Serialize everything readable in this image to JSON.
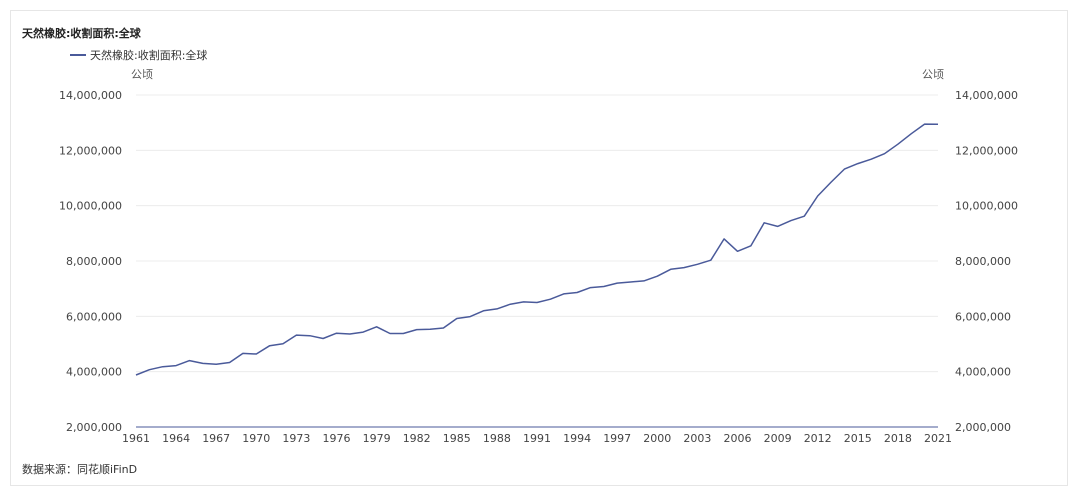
{
  "chart_title": "天然橡胶:收割面积:全球",
  "legend_label": "天然橡胶:收割面积:全球",
  "unit_left": "公顷",
  "unit_right": "公顷",
  "source": "数据来源：同花顺iFinD",
  "colors": {
    "line": "#4a5a9a",
    "grid": "#ececec",
    "axis": "#4a5a9a"
  },
  "chart_data": {
    "type": "line",
    "title": "天然橡胶:收割面积:全球",
    "xlabel": "",
    "ylabel": "公顷",
    "ylim": [
      2000000,
      14000000
    ],
    "yticks": [
      "2,000,000",
      "4,000,000",
      "6,000,000",
      "8,000,000",
      "10,000,000",
      "12,000,000",
      "14,000,000"
    ],
    "xticks": [
      "1961",
      "1964",
      "1967",
      "1970",
      "1973",
      "1976",
      "1979",
      "1982",
      "1985",
      "1988",
      "1991",
      "1994",
      "1997",
      "2000",
      "2003",
      "2006",
      "2009",
      "2012",
      "2015",
      "2018",
      "2021"
    ],
    "grid": true,
    "legend": "top-left",
    "x": [
      1961,
      1962,
      1963,
      1964,
      1965,
      1966,
      1967,
      1968,
      1969,
      1970,
      1971,
      1972,
      1973,
      1974,
      1975,
      1976,
      1977,
      1978,
      1979,
      1980,
      1981,
      1982,
      1983,
      1984,
      1985,
      1986,
      1987,
      1988,
      1989,
      1990,
      1991,
      1992,
      1993,
      1994,
      1995,
      1996,
      1997,
      1998,
      1999,
      2000,
      2001,
      2002,
      2003,
      2004,
      2005,
      2006,
      2007,
      2008,
      2009,
      2010,
      2011,
      2012,
      2013,
      2014,
      2015,
      2016,
      2017,
      2018,
      2019,
      2020,
      2021
    ],
    "series": [
      {
        "name": "天然橡胶:收割面积:全球",
        "values": [
          3880000,
          4070000,
          4180000,
          4220000,
          4400000,
          4300000,
          4270000,
          4330000,
          4660000,
          4640000,
          4940000,
          5010000,
          5320000,
          5300000,
          5200000,
          5390000,
          5360000,
          5430000,
          5620000,
          5380000,
          5380000,
          5520000,
          5530000,
          5580000,
          5920000,
          5990000,
          6200000,
          6270000,
          6440000,
          6520000,
          6500000,
          6620000,
          6810000,
          6860000,
          7040000,
          7080000,
          7200000,
          7240000,
          7280000,
          7450000,
          7700000,
          7760000,
          7880000,
          8030000,
          8800000,
          8350000,
          8550000,
          9380000,
          9250000,
          9460000,
          9620000,
          10350000,
          10850000,
          11320000,
          11520000,
          11680000,
          11880000,
          12220000,
          12600000,
          12950000,
          12940000
        ]
      }
    ]
  }
}
